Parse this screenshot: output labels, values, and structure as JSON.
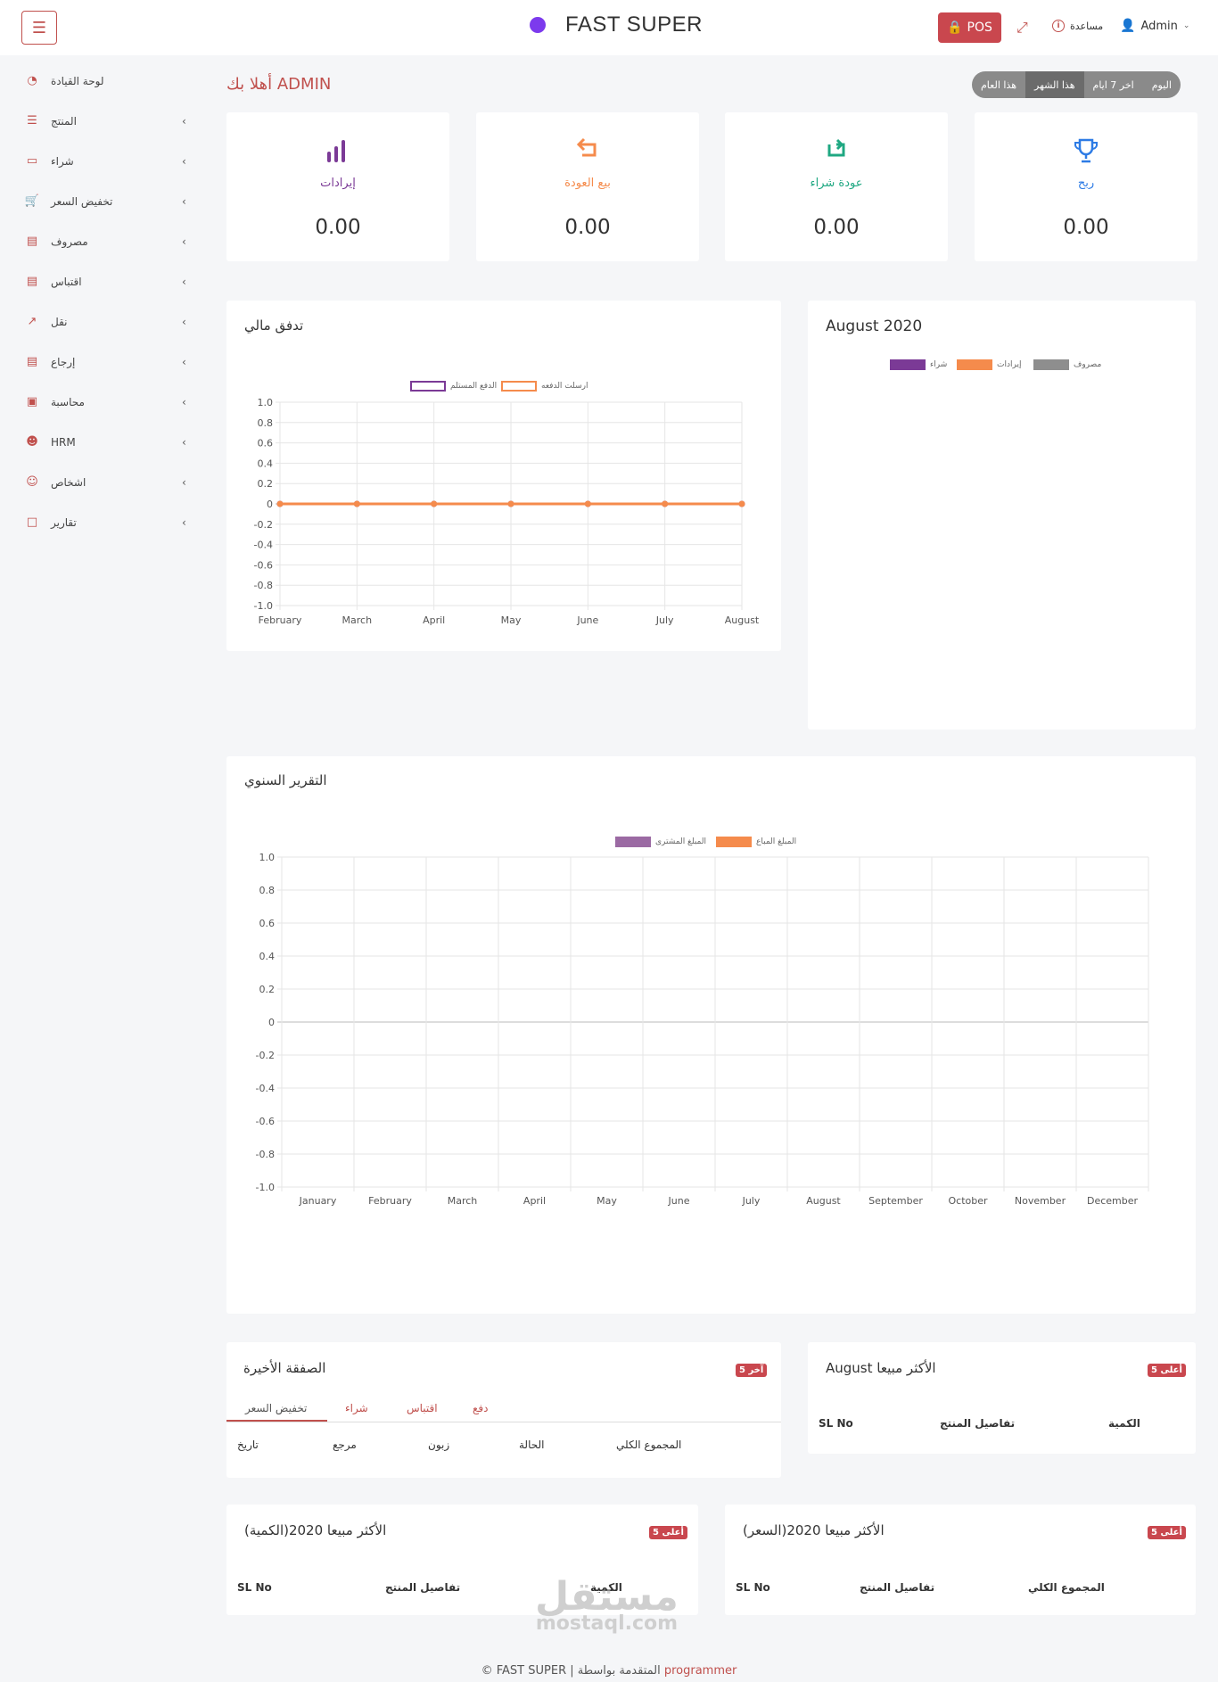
{
  "header": {
    "menu_icon": "hamburger-icon",
    "brand_name": "FAST SUPER",
    "pos_label": "POS",
    "help_label": "مساعدة",
    "user_label": "Admin"
  },
  "sidebar": {
    "items": [
      {
        "label": "لوحة القيادة",
        "icon": "dashboard-icon",
        "has_chevron": false
      },
      {
        "label": "المنتج",
        "icon": "list-icon",
        "has_chevron": true
      },
      {
        "label": "شراء",
        "icon": "card-icon",
        "has_chevron": true
      },
      {
        "label": "تخفيض السعر",
        "icon": "cart-icon",
        "has_chevron": true
      },
      {
        "label": "مصروف",
        "icon": "wallet-icon",
        "has_chevron": true
      },
      {
        "label": "اقتباس",
        "icon": "document-icon",
        "has_chevron": true
      },
      {
        "label": "نقل",
        "icon": "share-icon",
        "has_chevron": true
      },
      {
        "label": "إرجاع",
        "icon": "return-icon",
        "has_chevron": true
      },
      {
        "label": "محاسبة",
        "icon": "briefcase-icon",
        "has_chevron": true
      },
      {
        "label": "HRM",
        "icon": "users-icon",
        "has_chevron": true
      },
      {
        "label": "اشخاص",
        "icon": "person-icon",
        "has_chevron": true
      },
      {
        "label": "تقارير",
        "icon": "file-icon",
        "has_chevron": true
      }
    ]
  },
  "welcome": "أهلا بك ADMIN",
  "filters": [
    "هذا العام",
    "هذا الشهر",
    "اخر 7 ايام",
    "اليوم"
  ],
  "stats": [
    {
      "label": "إيرادات",
      "value": "0.00",
      "color": "#7b3a96",
      "icon": "bar-chart-icon"
    },
    {
      "label": "بيع العودة",
      "value": "0.00",
      "color": "#f58b4c",
      "icon": "return-arrow-icon"
    },
    {
      "label": "عودة شراء",
      "value": "0.00",
      "color": "#1fa882",
      "icon": "refresh-icon"
    },
    {
      "label": "ربح",
      "value": "0.00",
      "color": "#2d7be5",
      "icon": "trophy-icon"
    }
  ],
  "cashflow": {
    "title": "تدفق مالي",
    "legend": [
      {
        "label": "الدفع المستلم",
        "color": "#7b3a96"
      },
      {
        "label": "ارسلت الدفعه",
        "color": "#f58b4c"
      }
    ]
  },
  "month_card": {
    "title": "August 2020",
    "legend": [
      {
        "label": "شراء",
        "color": "#7b3a96"
      },
      {
        "label": "إيرادات",
        "color": "#f58b4c"
      },
      {
        "label": "مصروف",
        "color": "#8e8e8e"
      }
    ]
  },
  "yearly": {
    "title": "التقرير السنوي",
    "legend": [
      {
        "label": "المبلغ المشترى",
        "color": "#9b6aa3"
      },
      {
        "label": "المبلغ المباع",
        "color": "#f58b4c"
      }
    ]
  },
  "recent": {
    "title": "الصفقة الأخيرة",
    "badge": "آخر 5",
    "tabs": [
      "تخفيض السعر",
      "شراء",
      "اقتباس",
      "دفع"
    ],
    "headers": [
      "تاريخ",
      "مرجع",
      "زبون",
      "الحالة",
      "المجموع الكلي"
    ]
  },
  "best_month": {
    "title": "August الأكثر مبيعا",
    "badge": "أعلى 5",
    "headers": [
      "SL No",
      "تفاصيل المنتج",
      "الكمية"
    ]
  },
  "best_year_qty": {
    "title": "الأكثر مبيعا 2020(الكمية)",
    "badge": "أعلى 5",
    "headers": [
      "SL No",
      "تفاصيل المنتج",
      "الكمية"
    ]
  },
  "best_year_price": {
    "title": "الأكثر مبيعا 2020(السعر)",
    "badge": "أعلى 5",
    "headers": [
      "SL No",
      "تفاصيل المنتج",
      "المجموع الكلي"
    ]
  },
  "footer": {
    "text": "© FAST SUPER | المتقدمة بواسطة",
    "link": "programmer"
  },
  "watermark": {
    "arabic": "مستقل",
    "latin": "mostaql.com"
  },
  "chart_data": [
    {
      "type": "line",
      "title": "تدفق مالي",
      "categories": [
        "February",
        "March",
        "April",
        "May",
        "June",
        "July",
        "August"
      ],
      "series": [
        {
          "name": "الدفع المستلم",
          "values": [
            0,
            0,
            0,
            0,
            0,
            0,
            0
          ]
        },
        {
          "name": "ارسلت الدفعه",
          "values": [
            0,
            0,
            0,
            0,
            0,
            0,
            0
          ]
        }
      ],
      "ylim": [
        -1.0,
        1.0
      ],
      "yticks": [
        "1.0",
        "0.8",
        "0.6",
        "0.4",
        "0.2",
        "0",
        "-0.2",
        "-0.4",
        "-0.6",
        "-0.8",
        "-1.0"
      ],
      "grid": true,
      "legend": "top"
    },
    {
      "type": "bar",
      "title": "التقرير السنوي",
      "categories": [
        "January",
        "February",
        "March",
        "April",
        "May",
        "June",
        "July",
        "August",
        "September",
        "October",
        "November",
        "December"
      ],
      "series": [
        {
          "name": "المبلغ المشترى",
          "values": [
            0,
            0,
            0,
            0,
            0,
            0,
            0,
            0,
            0,
            0,
            0,
            0
          ]
        },
        {
          "name": "المبلغ المباع",
          "values": [
            0,
            0,
            0,
            0,
            0,
            0,
            0,
            0,
            0,
            0,
            0,
            0
          ]
        }
      ],
      "ylim": [
        -1.0,
        1.0
      ],
      "yticks": [
        "1.0",
        "0.8",
        "0.6",
        "0.4",
        "0.2",
        "0",
        "-0.2",
        "-0.4",
        "-0.6",
        "-0.8",
        "-1.0"
      ],
      "grid": true,
      "legend": "top"
    }
  ]
}
